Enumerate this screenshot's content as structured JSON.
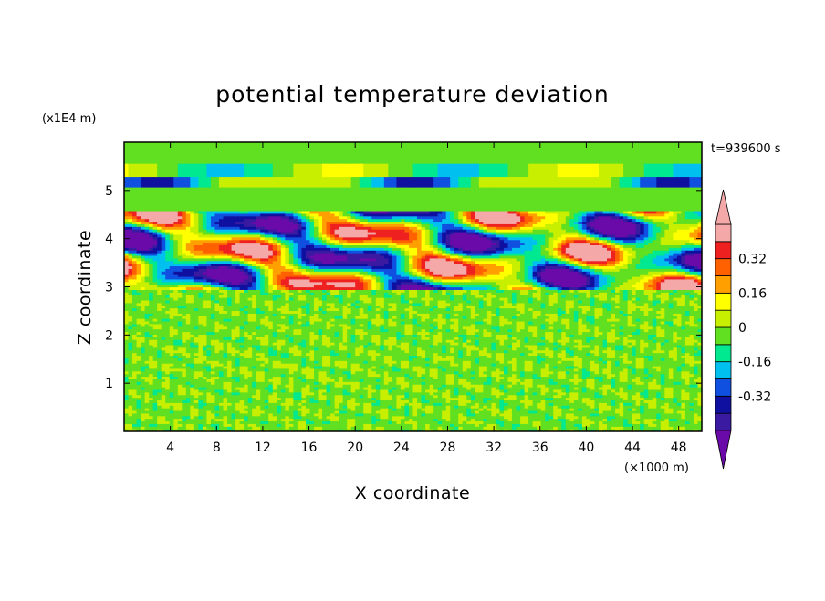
{
  "chart_data": {
    "type": "heatmap",
    "title": "potential temperature deviation",
    "xlabel": "X coordinate",
    "ylabel": "Z coordinate",
    "x_unit": "(×1000 m)",
    "y_unit": "(x1E4 m)",
    "time_label": "t=939600 s",
    "xlim": [
      0,
      50
    ],
    "ylim": [
      0,
      6
    ],
    "xticks": [
      4,
      8,
      12,
      16,
      20,
      24,
      28,
      32,
      36,
      40,
      44,
      48
    ],
    "yticks": [
      1,
      2,
      3,
      4,
      5
    ],
    "colorbar": {
      "levels": [
        -0.48,
        -0.4,
        -0.32,
        -0.24,
        -0.16,
        -0.08,
        0,
        0.08,
        0.16,
        0.24,
        0.32,
        0.4,
        0.48
      ],
      "colors": [
        "#6a0aa8",
        "#3a1aa0",
        "#1010a0",
        "#1050e0",
        "#00c0f0",
        "#00e890",
        "#60e020",
        "#c8ef00",
        "#ffff00",
        "#ffa000",
        "#ff6000",
        "#ee2020",
        "#f4a8a8"
      ],
      "labels": [
        "0.32",
        "0.16",
        "0",
        "-0.16",
        "-0.32"
      ],
      "label_values": [
        0.32,
        0.16,
        0,
        -0.16,
        -0.32
      ],
      "extend": "both"
    },
    "grid": false,
    "legend": "right"
  }
}
